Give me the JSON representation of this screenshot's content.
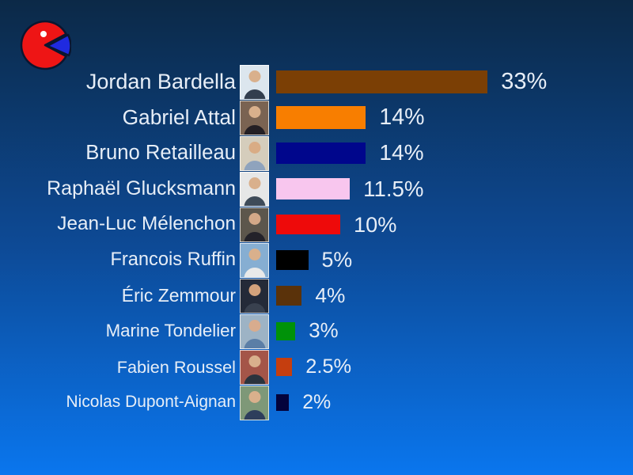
{
  "slide": {
    "background": {
      "top": "#0c2947",
      "mid": "#0d4a96",
      "bottom": "#0a76ee"
    },
    "text_color": "#e7eef7"
  },
  "logo": {
    "description": "red exploded pie-chart (pac-man) with blue slice and white dot",
    "body_color": "#ee1515",
    "slice_color": "#1f2ae0",
    "outline_color": "#0a1630",
    "eye_color": "#ffffff"
  },
  "chart_data": {
    "type": "bar",
    "orientation": "horizontal",
    "title": "",
    "xlabel": "",
    "ylabel": "",
    "unit": "%",
    "xlim": [
      0,
      35
    ],
    "grid": false,
    "legend": false,
    "categories": [
      "Jordan Bardella",
      "Gabriel Attal",
      "Bruno Retailleau",
      "Raphaël Glucksmann",
      "Jean-Luc Mélenchon",
      "Francois Ruffin",
      "Éric Zemmour",
      "Marine Tondelier",
      "Fabien Roussel",
      "Nicolas Dupont-Aignan"
    ],
    "values": [
      33,
      14,
      14,
      11.5,
      10,
      5,
      4,
      3,
      2.5,
      2
    ],
    "value_labels": [
      "33%",
      "14%",
      "14%",
      "11.5%",
      "10%",
      "5%",
      "4%",
      "3%",
      "2.5%",
      "2%"
    ],
    "bar_colors": [
      "#7b3f05",
      "#f87e00",
      "#00068c",
      "#f8c6ee",
      "#ee0a0a",
      "#000000",
      "#5a320a",
      "#009209",
      "#c53e0f",
      "#03033c"
    ]
  },
  "photos": [
    {
      "bg": "#dce6ee",
      "suit": "#323e4e",
      "skin": "#d9b08c"
    },
    {
      "bg": "#7a6352",
      "suit": "#241f24",
      "skin": "#d9b08c"
    },
    {
      "bg": "#d5cdbc",
      "suit": "#8fa3bd",
      "skin": "#d9ac85"
    },
    {
      "bg": "#e6e7e7",
      "suit": "#3e4b59",
      "skin": "#d9b08c"
    },
    {
      "bg": "#5c564c",
      "suit": "#23222a",
      "skin": "#d3a888"
    },
    {
      "bg": "#86aed2",
      "suit": "#e9e9e9",
      "skin": "#d9b08c"
    },
    {
      "bg": "#242a38",
      "suit": "#39414f",
      "skin": "#d3a27c"
    },
    {
      "bg": "#9db3c5",
      "suit": "#5b7ea6",
      "skin": "#d8ac8e"
    },
    {
      "bg": "#a45548",
      "suit": "#2b333d",
      "skin": "#d9b08c"
    },
    {
      "bg": "#7e9878",
      "suit": "#2e3e5c",
      "skin": "#d9b08c"
    }
  ]
}
